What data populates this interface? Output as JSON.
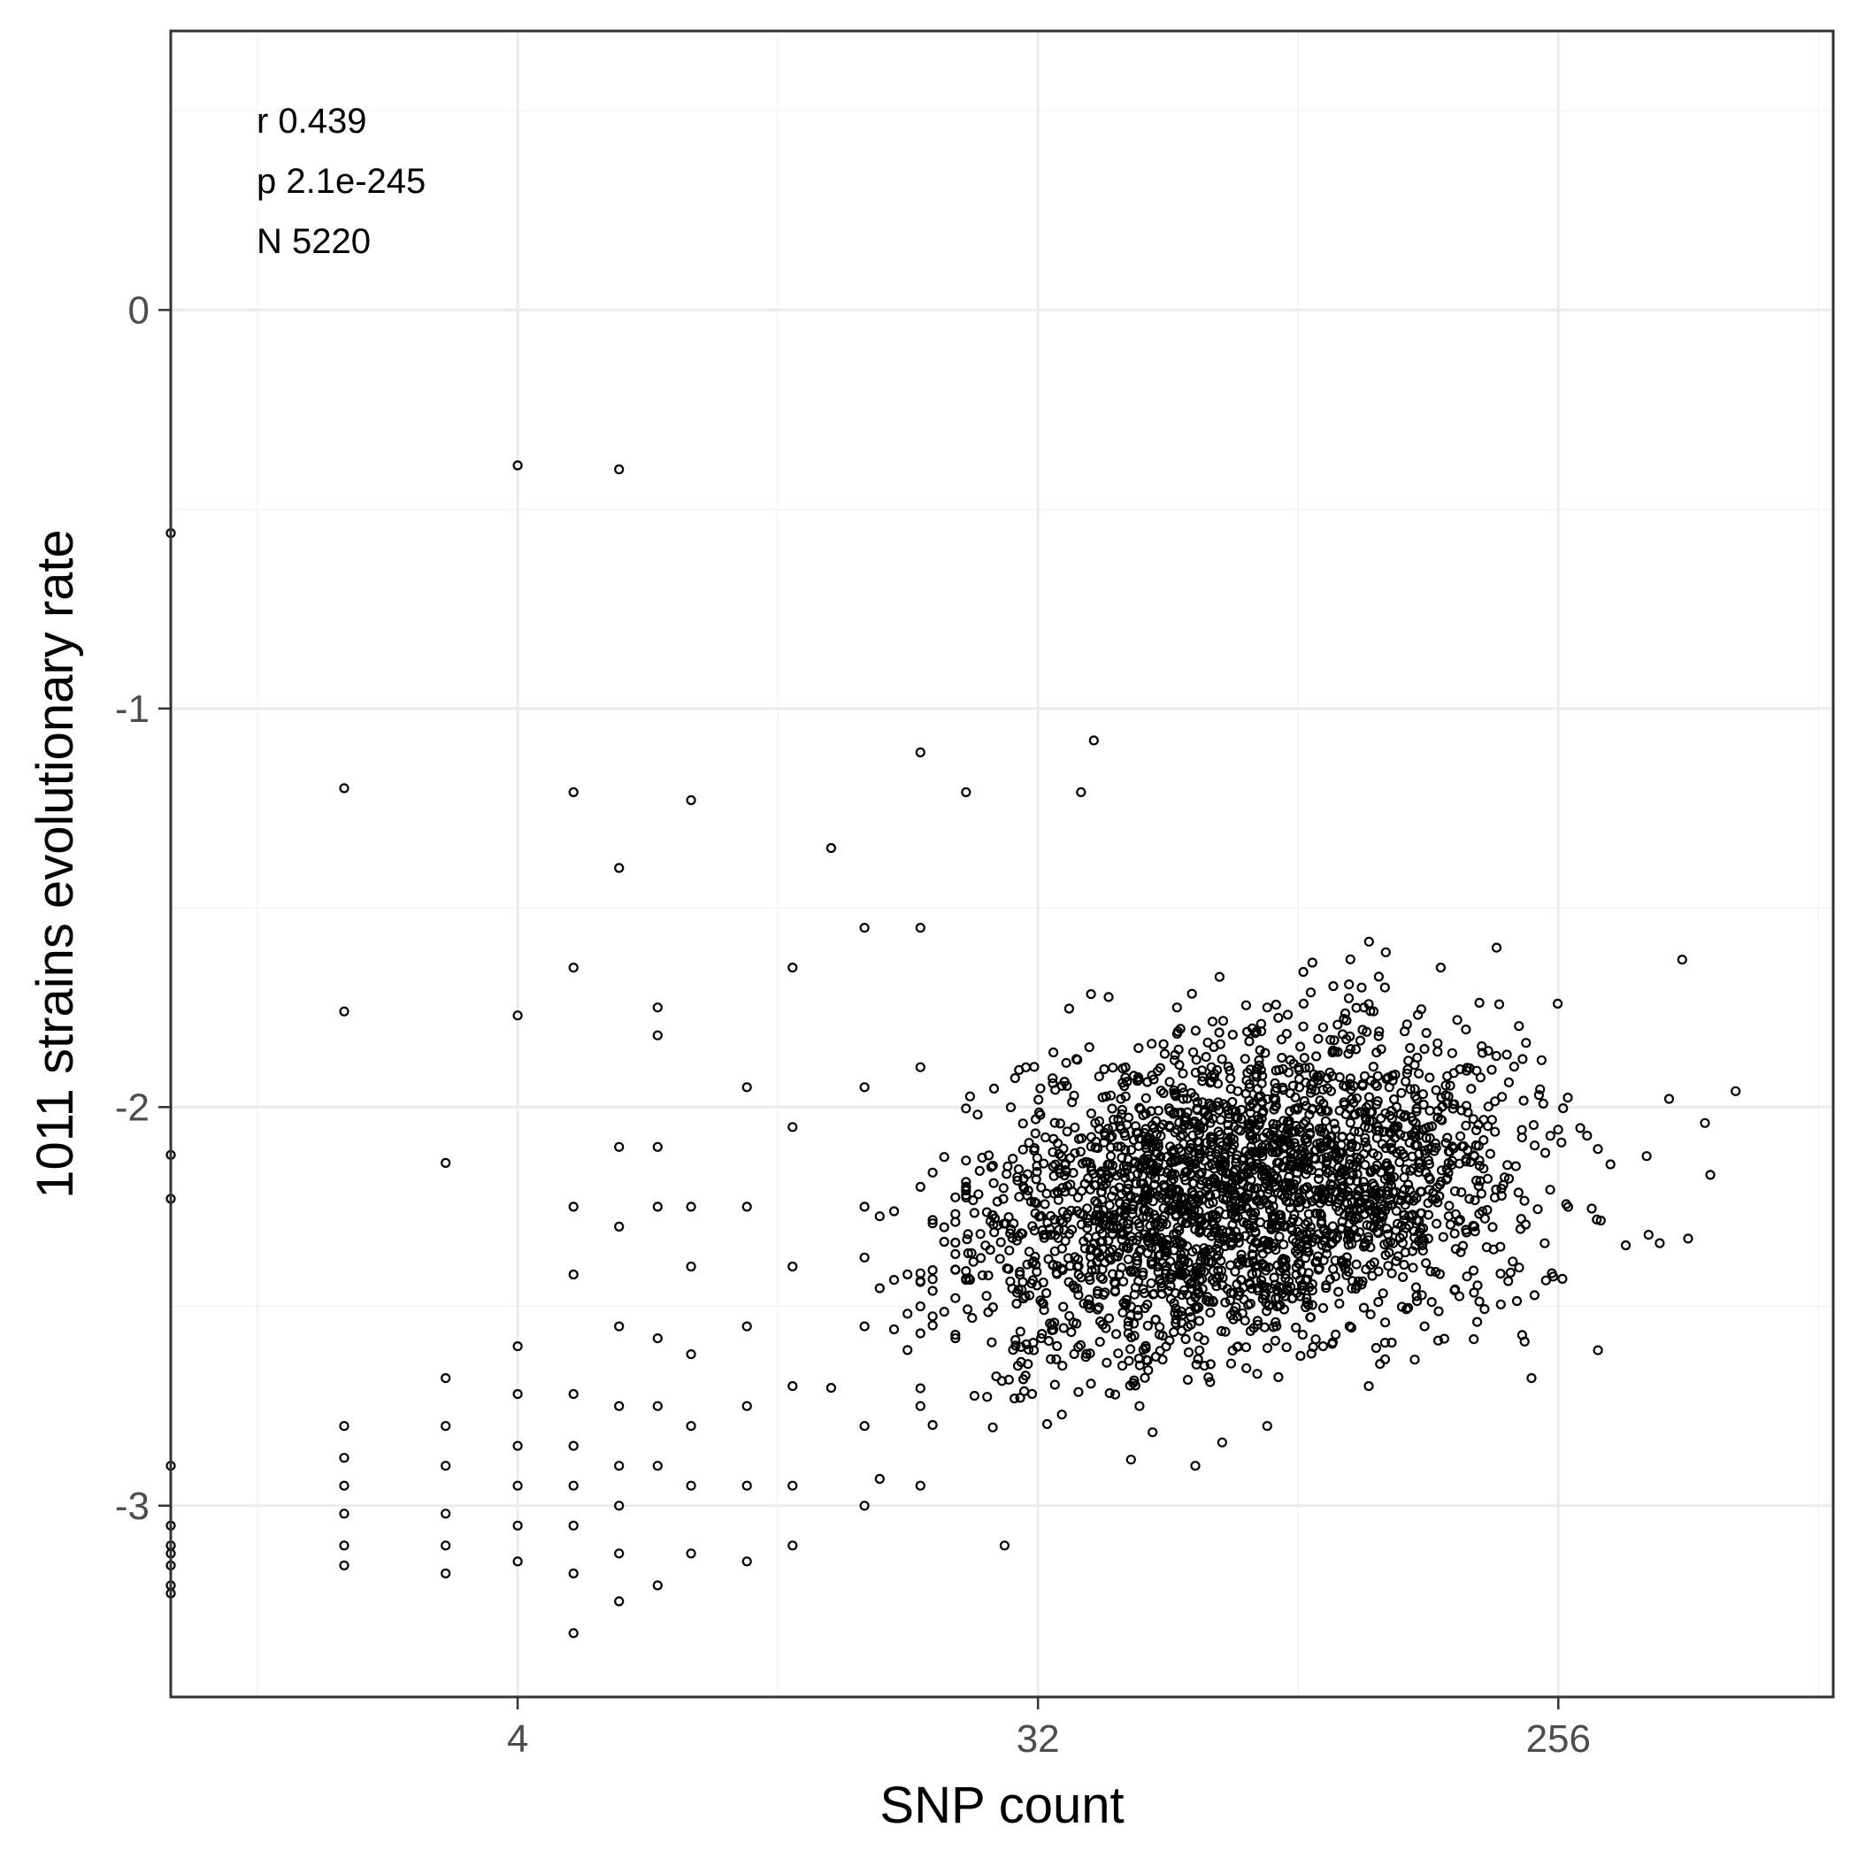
{
  "chart_data": {
    "type": "scatter",
    "xlabel": "SNP count",
    "ylabel": "1011 strains evolutionary rate",
    "x_scale": "log2",
    "xlim": [
      1,
      768
    ],
    "ylim": [
      -3.48,
      0.7
    ],
    "x_ticks": [
      4,
      32,
      256
    ],
    "x_tick_labels": [
      "4",
      "32",
      "256"
    ],
    "y_ticks": [
      -3,
      -2,
      -1,
      0
    ],
    "y_tick_labels": [
      "-3",
      "-2",
      "-1",
      "0"
    ],
    "grid": true,
    "annotations": [
      "r 0.439",
      "p 2.1e-245",
      "N 5220"
    ],
    "colors": {
      "points": "#000000",
      "panel_border": "#333333",
      "grid": "#ebebeb",
      "background": "#ffffff"
    },
    "points": [
      [
        4,
        -0.39
      ],
      [
        6,
        -0.4
      ],
      [
        1,
        -0.56
      ],
      [
        40,
        -1.08
      ],
      [
        20,
        -1.11
      ],
      [
        2,
        -1.2
      ],
      [
        5,
        -1.21
      ],
      [
        24,
        -1.21
      ],
      [
        8,
        -1.23
      ],
      [
        38,
        -1.21
      ],
      [
        14,
        -1.35
      ],
      [
        6,
        -1.4
      ],
      [
        5,
        -1.65
      ],
      [
        2,
        -1.76
      ],
      [
        4,
        -1.77
      ],
      [
        3,
        -2.14
      ],
      [
        1,
        -2.12
      ],
      [
        1,
        -2.23
      ],
      [
        420,
        -1.63
      ],
      [
        520,
        -1.96
      ],
      [
        460,
        -2.04
      ],
      [
        430,
        -2.33
      ],
      [
        470,
        -2.17
      ],
      [
        300,
        -2.61
      ],
      [
        230,
        -2.68
      ],
      [
        28,
        -3.1
      ],
      [
        1,
        -2.9
      ],
      [
        1,
        -3.05
      ],
      [
        1,
        -3.1
      ],
      [
        1,
        -3.12
      ],
      [
        1,
        -3.15
      ],
      [
        1,
        -3.2
      ],
      [
        1,
        -3.22
      ],
      [
        2,
        -2.8
      ],
      [
        2,
        -2.88
      ],
      [
        2,
        -2.95
      ],
      [
        2,
        -3.02
      ],
      [
        2,
        -3.1
      ],
      [
        2,
        -3.15
      ],
      [
        3,
        -2.68
      ],
      [
        3,
        -2.8
      ],
      [
        3,
        -2.9
      ],
      [
        3,
        -3.02
      ],
      [
        3,
        -3.1
      ],
      [
        3,
        -3.17
      ],
      [
        4,
        -2.6
      ],
      [
        4,
        -2.72
      ],
      [
        4,
        -2.85
      ],
      [
        4,
        -2.95
      ],
      [
        4,
        -3.05
      ],
      [
        4,
        -3.14
      ],
      [
        5,
        -2.25
      ],
      [
        5,
        -2.42
      ],
      [
        5,
        -2.72
      ],
      [
        5,
        -2.85
      ],
      [
        5,
        -2.95
      ],
      [
        5,
        -3.05
      ],
      [
        5,
        -3.17
      ],
      [
        5,
        -3.32
      ],
      [
        6,
        -2.1
      ],
      [
        6,
        -2.3
      ],
      [
        6,
        -2.55
      ],
      [
        6,
        -2.75
      ],
      [
        6,
        -2.9
      ],
      [
        6,
        -3.0
      ],
      [
        6,
        -3.12
      ],
      [
        6,
        -3.24
      ],
      [
        7,
        -1.75
      ],
      [
        7,
        -1.82
      ],
      [
        7,
        -2.1
      ],
      [
        7,
        -2.25
      ],
      [
        7,
        -2.58
      ],
      [
        7,
        -2.75
      ],
      [
        7,
        -2.9
      ],
      [
        7,
        -3.2
      ],
      [
        8,
        -2.25
      ],
      [
        8,
        -2.4
      ],
      [
        8,
        -2.62
      ],
      [
        8,
        -2.8
      ],
      [
        8,
        -2.95
      ],
      [
        8,
        -3.12
      ],
      [
        10,
        -1.95
      ],
      [
        10,
        -2.25
      ],
      [
        10,
        -2.55
      ],
      [
        10,
        -2.75
      ],
      [
        10,
        -2.95
      ],
      [
        10,
        -3.14
      ],
      [
        12,
        -1.65
      ],
      [
        12,
        -2.05
      ],
      [
        12,
        -2.4
      ],
      [
        12,
        -2.7
      ],
      [
        12,
        -2.95
      ],
      [
        12,
        -3.1
      ],
      [
        16,
        -1.55
      ],
      [
        16,
        -1.95
      ],
      [
        16,
        -2.25
      ],
      [
        16,
        -2.55
      ],
      [
        16,
        -2.8
      ],
      [
        16,
        -3.0
      ],
      [
        20,
        -1.55
      ],
      [
        20,
        -1.9
      ],
      [
        20,
        -2.2
      ],
      [
        20,
        -2.5
      ],
      [
        20,
        -2.75
      ],
      [
        20,
        -2.95
      ],
      [
        48,
        -2.75
      ],
      [
        60,
        -2.9
      ],
      [
        80,
        -2.8
      ],
      [
        100,
        -2.6
      ],
      [
        120,
        -2.7
      ],
      [
        150,
        -2.55
      ],
      [
        64,
        -1.9
      ],
      [
        80,
        -1.75
      ],
      [
        100,
        -1.8
      ],
      [
        128,
        -1.7
      ],
      [
        160,
        -1.65
      ],
      [
        200,
        -1.6
      ]
    ]
  }
}
